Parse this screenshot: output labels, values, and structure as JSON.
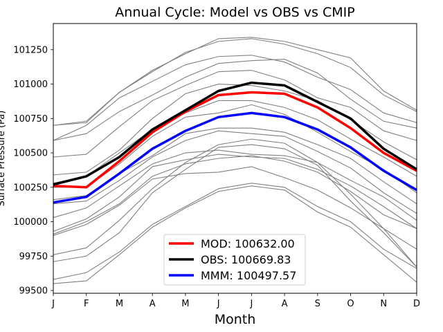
{
  "chart_data": {
    "type": "line",
    "title": "Annual Cycle: Model vs OBS vs CMIP",
    "xlabel": "Month",
    "ylabel": "Surface Pressure (Pa)",
    "categories": [
      "J",
      "F",
      "M",
      "A",
      "M",
      "J",
      "J",
      "A",
      "S",
      "O",
      "N",
      "D"
    ],
    "ylim": [
      99480,
      101440
    ],
    "yticks": [
      99500,
      99750,
      100000,
      100250,
      100500,
      100750,
      101000,
      101250
    ],
    "ytick_labels": [
      "99500",
      "99750",
      "100000",
      "100250",
      "100500",
      "100750",
      "101000",
      "101250"
    ],
    "grid": false,
    "legend_location": "lower center",
    "colors": {
      "ensemble": "#808080",
      "model": "#ff0000",
      "obs": "#000000",
      "mmm": "#0000ff"
    },
    "ensemble": [
      [
        100700,
        100730,
        100940,
        101100,
        101220,
        101330,
        101340,
        101310,
        101250,
        101190,
        100950,
        100810
      ],
      [
        100700,
        100720,
        100940,
        101090,
        101230,
        101310,
        101330,
        101290,
        101220,
        101120,
        100920,
        100800
      ],
      [
        100590,
        100700,
        100900,
        101020,
        101140,
        101200,
        101210,
        101160,
        101050,
        100960,
        100790,
        100720
      ],
      [
        100590,
        100640,
        100800,
        100920,
        101050,
        101150,
        101170,
        101180,
        101080,
        100890,
        100730,
        100680
      ],
      [
        100470,
        100490,
        100690,
        100880,
        100990,
        101090,
        101100,
        101030,
        100900,
        100830,
        100660,
        100590
      ],
      [
        100340,
        100360,
        100520,
        100750,
        100930,
        101000,
        100990,
        100950,
        100880,
        100740,
        100580,
        100450
      ],
      [
        100280,
        100330,
        100500,
        100670,
        100790,
        100880,
        100880,
        100830,
        100740,
        100600,
        100470,
        100330
      ],
      [
        100250,
        100250,
        100420,
        100620,
        100760,
        100790,
        100850,
        100780,
        100650,
        100510,
        100380,
        100210
      ],
      [
        100160,
        100190,
        100350,
        100480,
        100640,
        100680,
        100680,
        100650,
        100560,
        100460,
        100290,
        100130
      ],
      [
        100130,
        100150,
        100300,
        100470,
        100590,
        100660,
        100640,
        100620,
        100510,
        100390,
        100210,
        100060
      ],
      [
        100030,
        100100,
        100260,
        100420,
        100500,
        100520,
        100490,
        100480,
        100430,
        100300,
        100180,
        100010
      ],
      [
        99930,
        100020,
        100180,
        100400,
        100450,
        100490,
        100470,
        100460,
        100380,
        100260,
        100110,
        99950
      ],
      [
        99910,
        100000,
        100130,
        100330,
        100420,
        100460,
        100480,
        100440,
        100360,
        100220,
        100050,
        99950
      ],
      [
        99900,
        99980,
        100120,
        100310,
        100350,
        100360,
        100400,
        100320,
        100230,
        100100,
        99950,
        99800
      ],
      [
        99760,
        99810,
        100010,
        100240,
        100430,
        100560,
        100600,
        100570,
        100430,
        100200,
        99950,
        99670
      ],
      [
        99710,
        99750,
        99920,
        100210,
        100380,
        100540,
        100560,
        100530,
        100410,
        100150,
        99920,
        99670
      ],
      [
        99580,
        99630,
        99780,
        99980,
        100110,
        100240,
        100280,
        100250,
        100110,
        100000,
        99800,
        99660
      ],
      [
        99550,
        99570,
        99760,
        99960,
        100100,
        100220,
        100260,
        100230,
        100070,
        99960,
        99760,
        99560
      ]
    ],
    "series": [
      {
        "name": "MOD",
        "legend_label": "MOD: 100632.00",
        "values": [
          100260,
          100250,
          100440,
          100650,
          100800,
          100920,
          100940,
          100930,
          100830,
          100680,
          100500,
          100370
        ]
      },
      {
        "name": "OBS",
        "legend_label": "OBS: 100669.83",
        "values": [
          100270,
          100330,
          100470,
          100670,
          100810,
          100950,
          101010,
          100990,
          100870,
          100750,
          100530,
          100380
        ]
      },
      {
        "name": "MMM",
        "legend_label": "MMM: 100497.57",
        "values": [
          100140,
          100180,
          100350,
          100530,
          100660,
          100760,
          100790,
          100760,
          100670,
          100540,
          100370,
          100230
        ]
      }
    ]
  }
}
